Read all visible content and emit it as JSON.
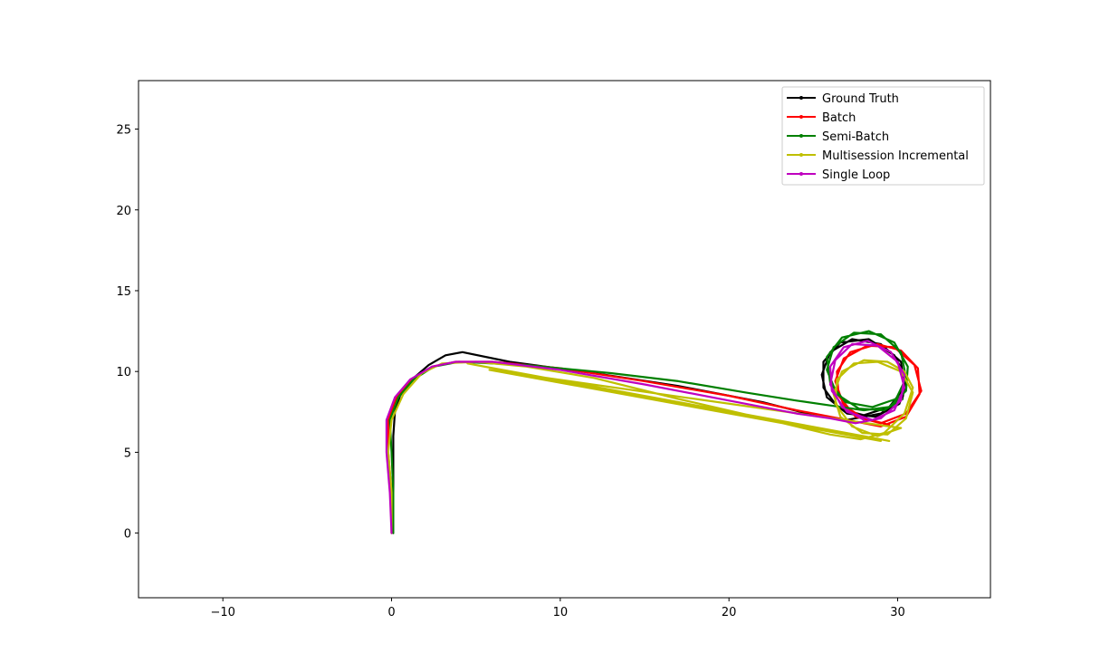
{
  "chart_data": {
    "type": "line",
    "title": "",
    "xlabel": "",
    "ylabel": "",
    "xlim": [
      -15,
      35.5
    ],
    "ylim": [
      -4,
      28
    ],
    "xticks": [
      -10,
      0,
      10,
      20,
      30
    ],
    "yticks": [
      0,
      5,
      10,
      15,
      20,
      25
    ],
    "x_tick_labels": [
      "−10",
      "0",
      "10",
      "20",
      "30"
    ],
    "y_tick_labels": [
      "0",
      "5",
      "10",
      "15",
      "20",
      "25"
    ],
    "grid": false,
    "legend_position": "top-right",
    "series": [
      {
        "name": "Ground Truth",
        "color": "#000000",
        "points": [
          [
            0.1,
            0
          ],
          [
            0.1,
            2
          ],
          [
            0.1,
            4
          ],
          [
            0.1,
            6
          ],
          [
            0.2,
            7.5
          ],
          [
            0.5,
            8.5
          ],
          [
            1.2,
            9.5
          ],
          [
            2.2,
            10.4
          ],
          [
            3.2,
            11
          ],
          [
            4.2,
            11.2
          ],
          [
            7,
            10.6
          ],
          [
            12,
            9.9
          ],
          [
            17,
            9.1
          ],
          [
            22,
            8.1
          ],
          [
            25,
            7.3
          ],
          [
            27,
            7
          ],
          [
            29,
            7.4
          ],
          [
            30.3,
            8.4
          ],
          [
            30.5,
            9.6
          ],
          [
            29.8,
            11
          ],
          [
            28.3,
            12
          ],
          [
            26.6,
            11.8
          ],
          [
            25.6,
            10.6
          ],
          [
            25.6,
            9
          ],
          [
            26.5,
            7.7
          ],
          [
            28,
            7.3
          ],
          [
            29.5,
            7.8
          ],
          [
            30.4,
            9
          ],
          [
            30.2,
            10.6
          ],
          [
            29,
            11.7
          ],
          [
            27.3,
            12
          ],
          [
            26,
            11.2
          ],
          [
            25.5,
            9.8
          ],
          [
            25.8,
            8.4
          ],
          [
            27,
            7.4
          ],
          [
            28.7,
            7.2
          ],
          [
            30.1,
            8
          ],
          [
            30.5,
            9.2
          ]
        ]
      },
      {
        "name": "Batch",
        "color": "#ff0000",
        "points": [
          [
            0,
            0
          ],
          [
            0,
            2.5
          ],
          [
            -0.2,
            5
          ],
          [
            -0.2,
            7
          ],
          [
            0.3,
            8.4
          ],
          [
            1.2,
            9.5
          ],
          [
            2.4,
            10.3
          ],
          [
            3.8,
            10.6
          ],
          [
            6,
            10.6
          ],
          [
            10,
            10.2
          ],
          [
            15,
            9.4
          ],
          [
            20,
            8.5
          ],
          [
            24,
            7.6
          ],
          [
            27,
            7
          ],
          [
            29,
            6.6
          ],
          [
            30.5,
            7.2
          ],
          [
            31.3,
            8.6
          ],
          [
            31.2,
            10.2
          ],
          [
            30.2,
            11.3
          ],
          [
            28.8,
            11.7
          ],
          [
            27.2,
            11.2
          ],
          [
            26.4,
            10
          ],
          [
            26.5,
            8.5
          ],
          [
            27.5,
            7.2
          ],
          [
            29,
            6.8
          ],
          [
            30.5,
            7.4
          ],
          [
            31.4,
            8.8
          ],
          [
            31,
            10.4
          ],
          [
            29.8,
            11.5
          ],
          [
            28.2,
            11.6
          ],
          [
            26.8,
            10.8
          ],
          [
            26.3,
            9.4
          ],
          [
            26.8,
            7.9
          ],
          [
            28,
            7.1
          ],
          [
            29.5,
            6.7
          ]
        ]
      },
      {
        "name": "Semi-Batch",
        "color": "#008000",
        "points": [
          [
            0.1,
            0
          ],
          [
            0.1,
            2.5
          ],
          [
            0,
            5
          ],
          [
            -0.1,
            7
          ],
          [
            0.4,
            8.4
          ],
          [
            1.3,
            9.5
          ],
          [
            2.5,
            10.3
          ],
          [
            4,
            10.6
          ],
          [
            8,
            10.4
          ],
          [
            13,
            9.9
          ],
          [
            17,
            9.4
          ],
          [
            21,
            8.7
          ],
          [
            24,
            8.2
          ],
          [
            26,
            7.9
          ],
          [
            28,
            7.6
          ],
          [
            29.5,
            7.8
          ],
          [
            30.5,
            8.8
          ],
          [
            30.6,
            10.3
          ],
          [
            29.8,
            11.8
          ],
          [
            28.3,
            12.5
          ],
          [
            26.7,
            12.1
          ],
          [
            25.8,
            10.9
          ],
          [
            26,
            9.3
          ],
          [
            26.9,
            8.1
          ],
          [
            28.5,
            7.8
          ],
          [
            29.9,
            8.3
          ],
          [
            30.5,
            9.6
          ],
          [
            30.2,
            11.2
          ],
          [
            29,
            12.3
          ],
          [
            27.4,
            12.4
          ],
          [
            26.2,
            11.5
          ],
          [
            25.8,
            10.1
          ],
          [
            26.4,
            8.6
          ],
          [
            27.7,
            7.7
          ],
          [
            29.2,
            7.6
          ],
          [
            30.3,
            8.3
          ]
        ]
      },
      {
        "name": "Multisession Incremental",
        "color": "#bfbf00",
        "points": [
          [
            0,
            0
          ],
          [
            0,
            2.5
          ],
          [
            -0.2,
            5
          ],
          [
            0,
            7
          ],
          [
            0.7,
            8.6
          ],
          [
            1.8,
            9.9
          ],
          [
            3,
            10.5
          ],
          [
            5,
            10.6
          ],
          [
            8,
            10.3
          ],
          [
            12,
            9.6
          ],
          [
            17,
            8.3
          ],
          [
            22,
            7.1
          ],
          [
            26,
            6.1
          ],
          [
            27.8,
            5.8
          ],
          [
            29.2,
            6.2
          ],
          [
            30.4,
            7.4
          ],
          [
            30.9,
            9
          ],
          [
            30.4,
            10
          ],
          [
            29.4,
            10.6
          ],
          [
            28,
            10.7
          ],
          [
            26.7,
            10
          ],
          [
            26.2,
            8.6
          ],
          [
            26.6,
            7.2
          ],
          [
            27.9,
            6.2
          ],
          [
            29.4,
            6.1
          ],
          [
            30.5,
            7.1
          ],
          [
            30.9,
            8.7
          ],
          [
            30.2,
            10
          ],
          [
            28.8,
            10.6
          ],
          [
            27.4,
            10.5
          ],
          [
            26.4,
            9.5
          ],
          [
            26.3,
            8
          ],
          [
            27.3,
            6.6
          ],
          [
            28.8,
            6
          ],
          [
            30.2,
            6.5
          ],
          [
            5.8,
            10.1
          ],
          [
            29,
            5.7
          ],
          [
            4.5,
            10.5
          ],
          [
            28.5,
            5.9
          ],
          [
            29.5,
            5.7
          ]
        ]
      },
      {
        "name": "Single Loop",
        "color": "#bf00bf",
        "points": [
          [
            0,
            0
          ],
          [
            -0.1,
            2.5
          ],
          [
            -0.3,
            5
          ],
          [
            -0.3,
            7
          ],
          [
            0.2,
            8.4
          ],
          [
            1.1,
            9.5
          ],
          [
            2.4,
            10.3
          ],
          [
            3.8,
            10.6
          ],
          [
            6,
            10.6
          ],
          [
            10,
            10.1
          ],
          [
            15,
            9.2
          ],
          [
            20,
            8.2
          ],
          [
            24,
            7.4
          ],
          [
            26,
            7.1
          ],
          [
            27.5,
            6.8
          ],
          [
            29,
            7.1
          ],
          [
            30.2,
            8.2
          ],
          [
            30.4,
            9.8
          ],
          [
            29.6,
            11.2
          ],
          [
            28.2,
            11.9
          ],
          [
            26.8,
            11.5
          ],
          [
            26,
            10.3
          ],
          [
            26.1,
            8.8
          ],
          [
            27,
            7.5
          ],
          [
            28.5,
            7
          ],
          [
            29.8,
            7.6
          ],
          [
            30.4,
            9
          ],
          [
            30,
            10.6
          ],
          [
            28.8,
            11.6
          ],
          [
            27.3,
            11.7
          ],
          [
            26.3,
            10.7
          ],
          [
            26,
            9.2
          ],
          [
            26.7,
            7.8
          ],
          [
            28,
            7
          ]
        ]
      }
    ]
  }
}
